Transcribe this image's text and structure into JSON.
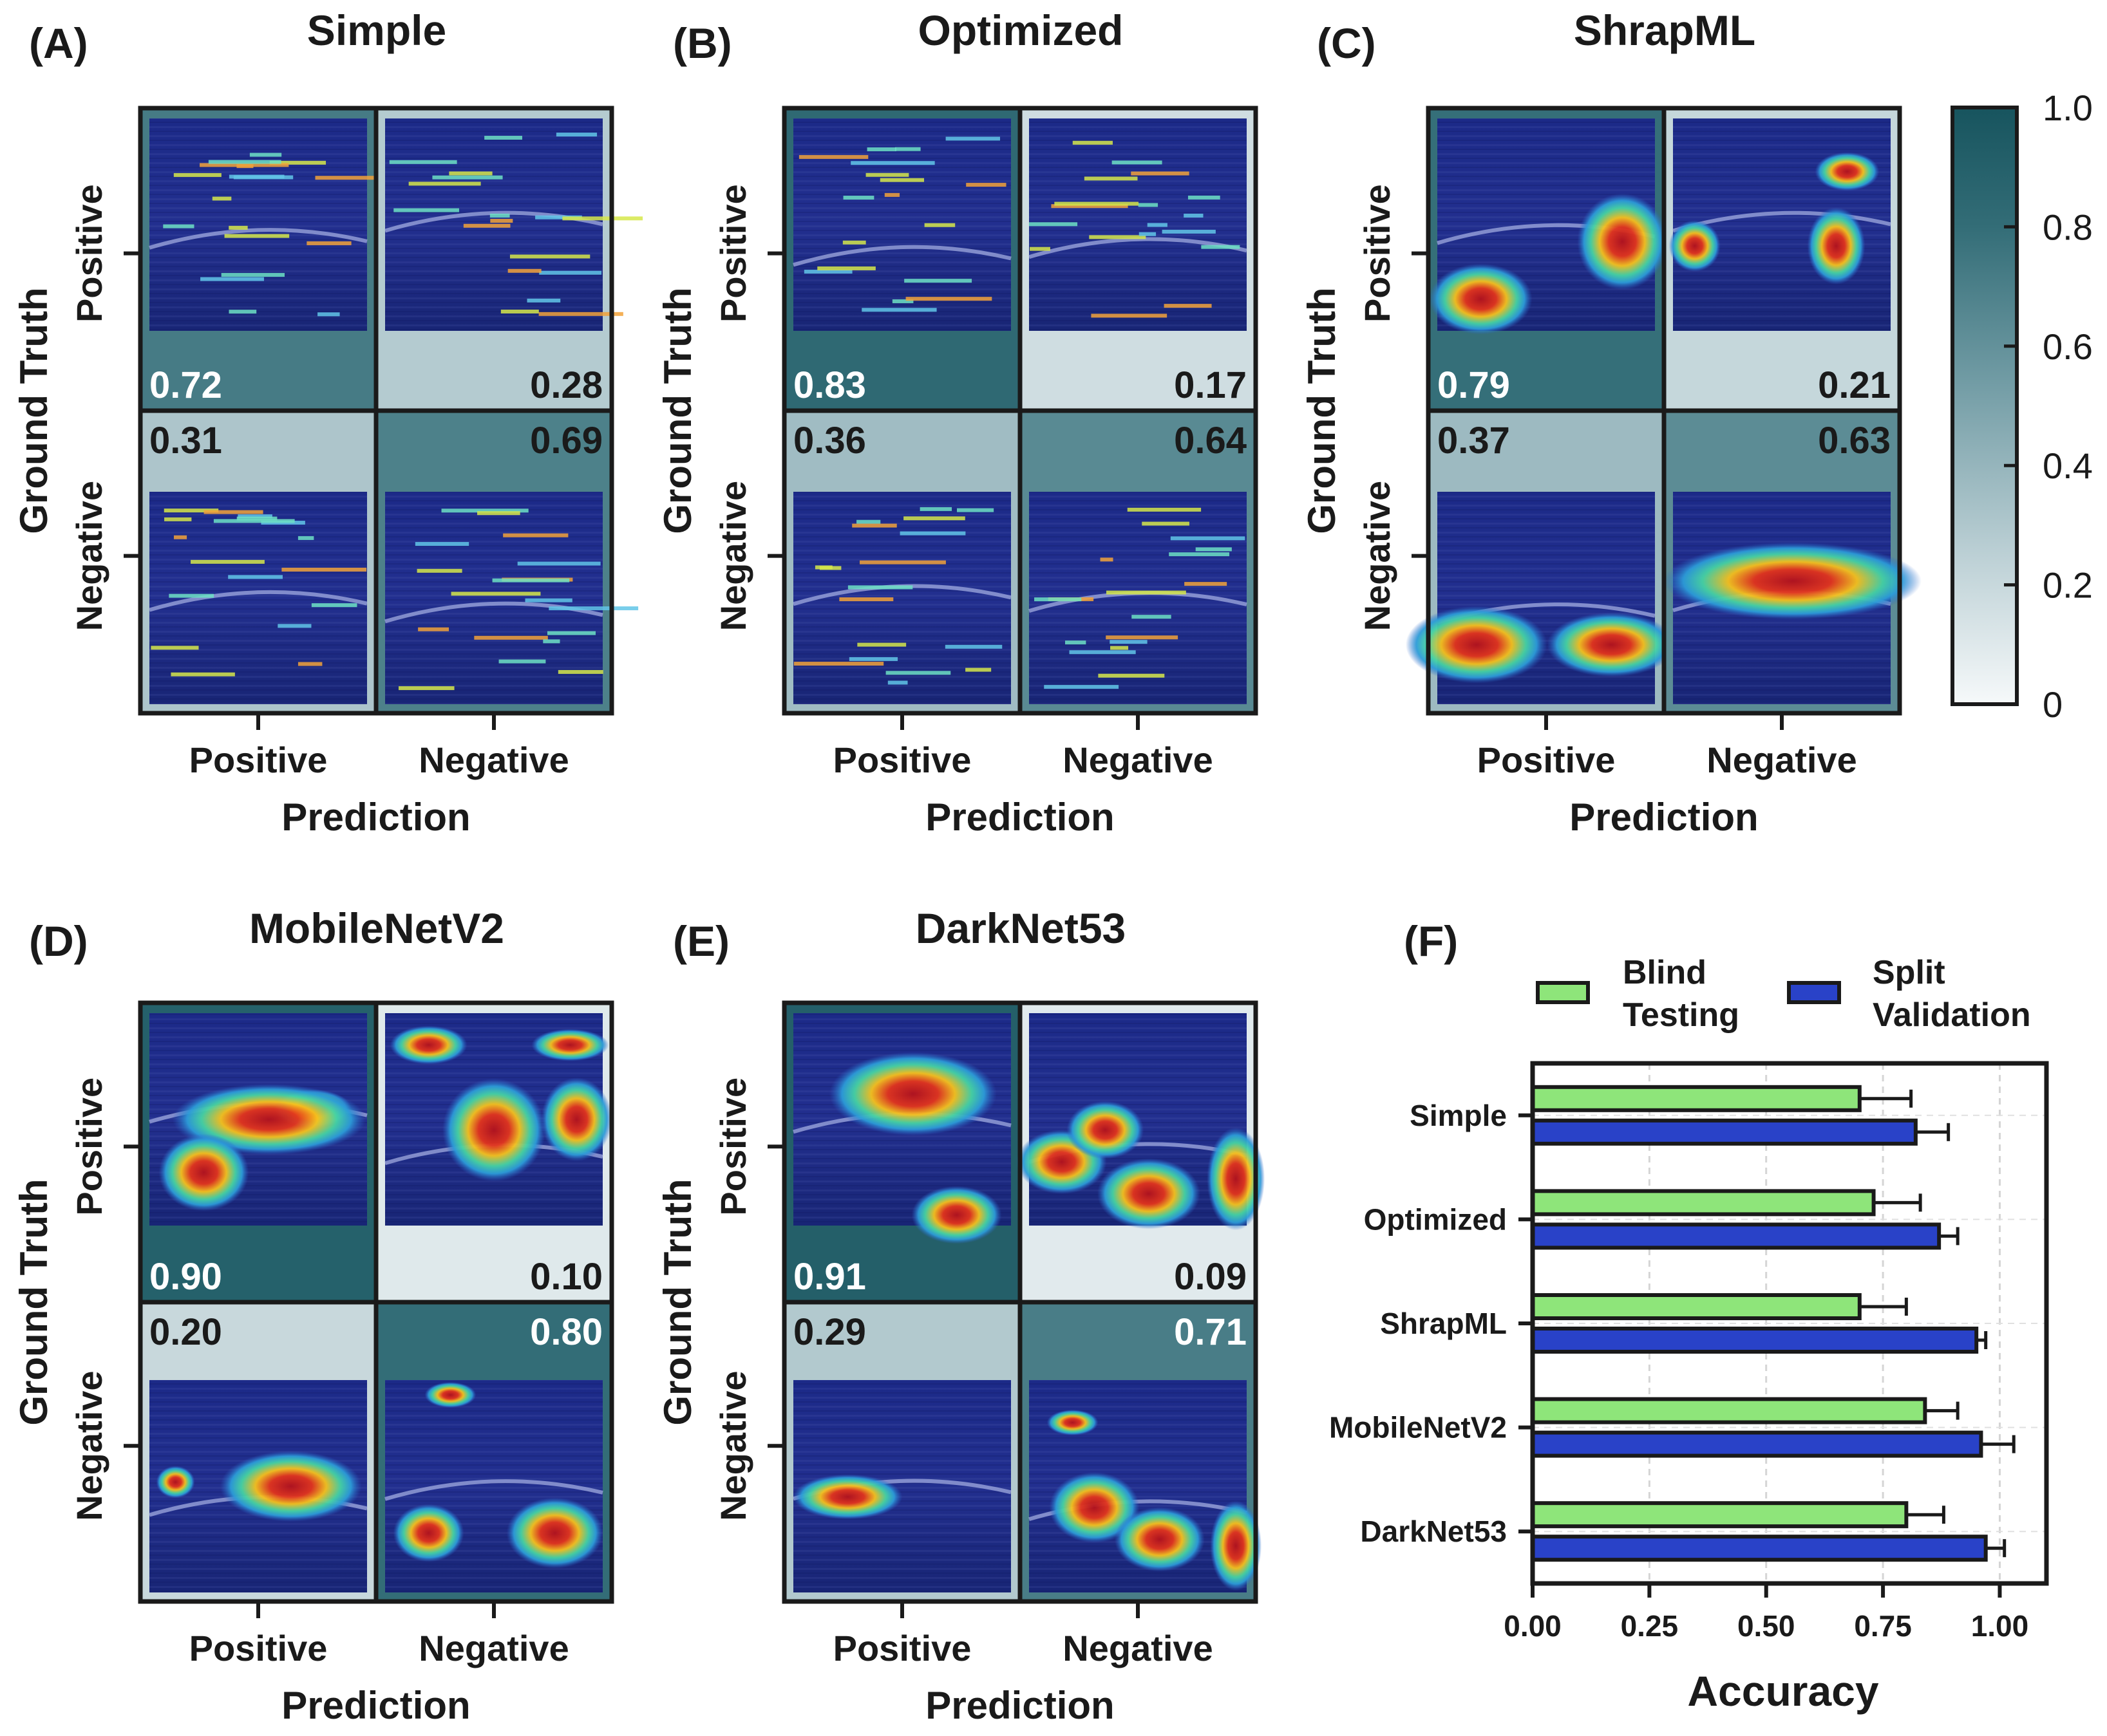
{
  "colors": {
    "frame": "#1a1a1a",
    "high": "#1f5e68",
    "low": "#f3f7f8",
    "blind": "#8ee57a",
    "split": "#2942c8",
    "text_dark": "#1a1a1a",
    "text_light": "#ffffff"
  },
  "chart_data": [
    {
      "type": "heatmap",
      "panel": "(A)",
      "title": "Simple",
      "xlabel": "Prediction",
      "ylabel": "Ground Truth",
      "x_ticks": [
        "Positive",
        "Negative"
      ],
      "y_ticks": [
        "Positive",
        "Negative"
      ],
      "matrix": [
        [
          "0.72",
          "0.28"
        ],
        [
          "0.31",
          "0.69"
        ]
      ],
      "overlay": "sparse"
    },
    {
      "type": "heatmap",
      "panel": "(B)",
      "title": "Optimized",
      "xlabel": "Prediction",
      "ylabel": "Ground Truth",
      "x_ticks": [
        "Positive",
        "Negative"
      ],
      "y_ticks": [
        "Positive",
        "Negative"
      ],
      "matrix": [
        [
          "0.83",
          "0.17"
        ],
        [
          "0.36",
          "0.64"
        ]
      ],
      "overlay": "sparse"
    },
    {
      "type": "heatmap",
      "panel": "(C)",
      "title": "ShrapML",
      "xlabel": "Prediction",
      "ylabel": "Ground Truth",
      "x_ticks": [
        "Positive",
        "Negative"
      ],
      "y_ticks": [
        "Positive",
        "Negative"
      ],
      "matrix": [
        [
          "0.79",
          "0.21"
        ],
        [
          "0.37",
          "0.63"
        ]
      ],
      "overlay": "blobs"
    },
    {
      "type": "heatmap",
      "panel": "(D)",
      "title": "MobileNetV2",
      "xlabel": "Prediction",
      "ylabel": "Ground Truth",
      "x_ticks": [
        "Positive",
        "Negative"
      ],
      "y_ticks": [
        "Positive",
        "Negative"
      ],
      "matrix": [
        [
          "0.90",
          "0.10"
        ],
        [
          "0.20",
          "0.80"
        ]
      ],
      "overlay": "blobs"
    },
    {
      "type": "heatmap",
      "panel": "(E)",
      "title": "DarkNet53",
      "xlabel": "Prediction",
      "ylabel": "Ground Truth",
      "x_ticks": [
        "Positive",
        "Negative"
      ],
      "y_ticks": [
        "Positive",
        "Negative"
      ],
      "matrix": [
        [
          "0.91",
          "0.09"
        ],
        [
          "0.29",
          "0.71"
        ]
      ],
      "overlay": "blobs"
    },
    {
      "type": "bar",
      "orientation": "horizontal",
      "panel": "(F)",
      "categories": [
        "Simple",
        "Optimized",
        "ShrapML",
        "MobileNetV2",
        "DarkNet53"
      ],
      "series": [
        {
          "name": "Blind Testing",
          "values": [
            0.7,
            0.73,
            0.7,
            0.84,
            0.8
          ],
          "errors": [
            0.11,
            0.1,
            0.1,
            0.07,
            0.08
          ]
        },
        {
          "name": "Split Validation",
          "values": [
            0.82,
            0.87,
            0.95,
            0.96,
            0.97
          ],
          "errors": [
            0.07,
            0.04,
            0.02,
            0.07,
            0.04
          ]
        }
      ],
      "xlabel": "Accuracy",
      "xlim": [
        0,
        1.1
      ],
      "x_ticks": [
        "0.00",
        "0.25",
        "0.50",
        "0.75",
        "1.00"
      ],
      "grid": true,
      "legend": "top"
    }
  ],
  "colorbar": {
    "min": 0,
    "max": 1.0,
    "tick_labels": [
      "0",
      "0.2",
      "0.4",
      "0.6",
      "0.8",
      "1.0"
    ]
  },
  "legend": {
    "blind_line1": "Blind",
    "blind_line2": "Testing",
    "split_line1": "Split",
    "split_line2": "Validation"
  }
}
